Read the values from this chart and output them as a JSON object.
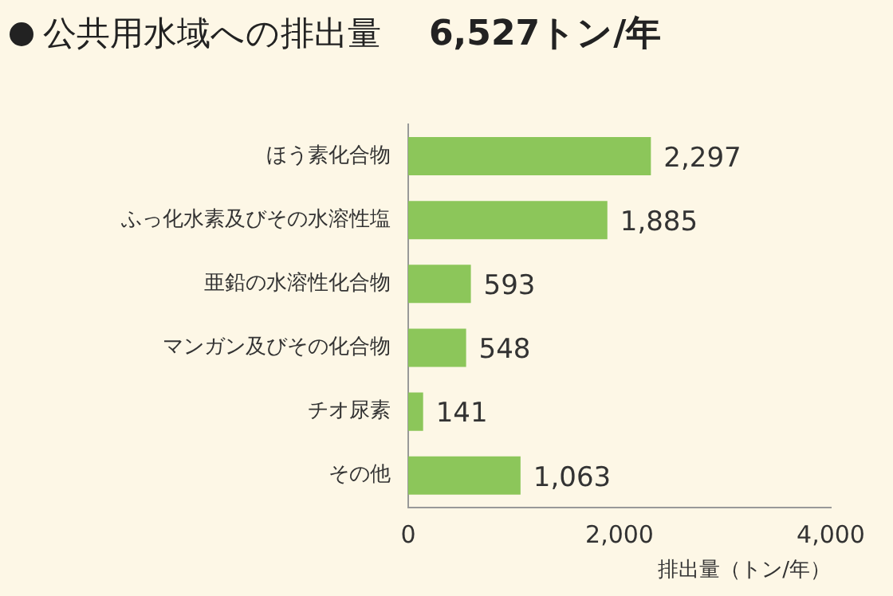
{
  "chart_data": {
    "type": "bar",
    "orientation": "horizontal",
    "title": "公共用水域への排出量",
    "subtitle": "6,527トン/年",
    "xlabel": "排出量（トン/年）",
    "categories": [
      "ほう素化合物",
      "ふっ化水素及びその水溶性塩",
      "亜鉛の水溶性化合物",
      "マンガン及びその化合物",
      "チオ尿素",
      "その他"
    ],
    "values": [
      2297,
      1885,
      593,
      548,
      141,
      1063
    ],
    "color": "#8cc65a",
    "xlim": [
      0,
      4000
    ],
    "xticks": [
      {
        "value": 0,
        "label": "0"
      },
      {
        "value": 2000,
        "label": "2,000"
      },
      {
        "value": 4000,
        "label": "4,000"
      }
    ],
    "value_labels": [
      "2,297",
      "1,885",
      "593",
      "548",
      "141",
      "1,063"
    ],
    "grid": false,
    "legend": false
  }
}
